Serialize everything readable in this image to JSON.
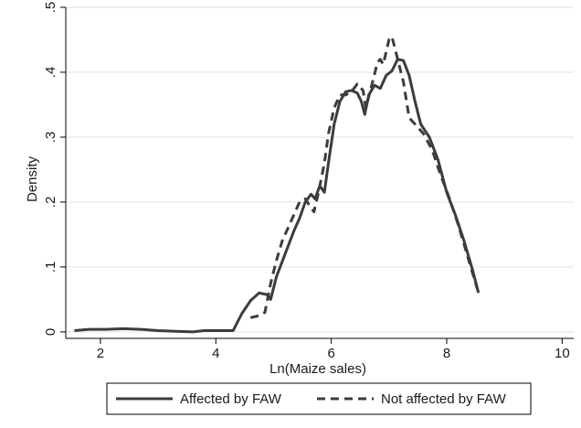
{
  "chart_data": {
    "type": "line",
    "xlabel": "Ln(Maize sales)",
    "ylabel": "Density",
    "xlim": [
      1.4,
      10.2
    ],
    "ylim": [
      -0.01,
      0.5
    ],
    "xticks": [
      {
        "value": 2,
        "label": "2"
      },
      {
        "value": 4,
        "label": "4"
      },
      {
        "value": 6,
        "label": "6"
      },
      {
        "value": 8,
        "label": "8"
      },
      {
        "value": 10,
        "label": "10"
      }
    ],
    "yticks": [
      {
        "value": 0,
        "label": "0"
      },
      {
        "value": 0.1,
        "label": ".1"
      },
      {
        "value": 0.2,
        "label": ".2"
      },
      {
        "value": 0.3,
        "label": ".3"
      },
      {
        "value": 0.4,
        "label": ".4"
      },
      {
        "value": 0.5,
        "label": ".5"
      }
    ],
    "grid": "horizontal",
    "legend_position": "bottom",
    "colors": {
      "line": "#3c3c3c",
      "grid": "#e2e2e2",
      "axis": "#000000",
      "background": "#ffffff"
    },
    "series": [
      {
        "name": "Affected by FAW",
        "style": "solid",
        "points": [
          [
            1.55,
            0.002
          ],
          [
            1.8,
            0.004
          ],
          [
            2.1,
            0.004
          ],
          [
            2.4,
            0.005
          ],
          [
            2.7,
            0.004
          ],
          [
            3.0,
            0.002
          ],
          [
            3.3,
            0.001
          ],
          [
            3.6,
            0.0
          ],
          [
            3.8,
            0.002
          ],
          [
            4.1,
            0.002
          ],
          [
            4.3,
            0.002
          ],
          [
            4.45,
            0.028
          ],
          [
            4.6,
            0.048
          ],
          [
            4.75,
            0.06
          ],
          [
            4.9,
            0.057
          ],
          [
            4.95,
            0.05
          ],
          [
            5.05,
            0.085
          ],
          [
            5.2,
            0.12
          ],
          [
            5.35,
            0.155
          ],
          [
            5.45,
            0.175
          ],
          [
            5.55,
            0.2
          ],
          [
            5.65,
            0.212
          ],
          [
            5.72,
            0.205
          ],
          [
            5.8,
            0.225
          ],
          [
            5.88,
            0.215
          ],
          [
            5.95,
            0.26
          ],
          [
            6.05,
            0.32
          ],
          [
            6.15,
            0.355
          ],
          [
            6.25,
            0.37
          ],
          [
            6.35,
            0.372
          ],
          [
            6.45,
            0.368
          ],
          [
            6.52,
            0.355
          ],
          [
            6.58,
            0.335
          ],
          [
            6.65,
            0.365
          ],
          [
            6.75,
            0.38
          ],
          [
            6.85,
            0.375
          ],
          [
            6.95,
            0.395
          ],
          [
            7.05,
            0.402
          ],
          [
            7.15,
            0.42
          ],
          [
            7.25,
            0.418
          ],
          [
            7.35,
            0.395
          ],
          [
            7.45,
            0.355
          ],
          [
            7.55,
            0.32
          ],
          [
            7.7,
            0.3
          ],
          [
            7.85,
            0.265
          ],
          [
            8.0,
            0.215
          ],
          [
            8.15,
            0.18
          ],
          [
            8.3,
            0.14
          ],
          [
            8.45,
            0.095
          ],
          [
            8.55,
            0.06
          ]
        ]
      },
      {
        "name": "Not affected by FAW",
        "style": "dashed",
        "points": [
          [
            4.6,
            0.022
          ],
          [
            4.75,
            0.025
          ],
          [
            4.85,
            0.03
          ],
          [
            4.95,
            0.075
          ],
          [
            5.05,
            0.11
          ],
          [
            5.15,
            0.14
          ],
          [
            5.25,
            0.16
          ],
          [
            5.35,
            0.18
          ],
          [
            5.45,
            0.2
          ],
          [
            5.55,
            0.205
          ],
          [
            5.62,
            0.195
          ],
          [
            5.7,
            0.185
          ],
          [
            5.78,
            0.215
          ],
          [
            5.88,
            0.26
          ],
          [
            5.95,
            0.305
          ],
          [
            6.05,
            0.345
          ],
          [
            6.15,
            0.365
          ],
          [
            6.25,
            0.365
          ],
          [
            6.35,
            0.37
          ],
          [
            6.45,
            0.382
          ],
          [
            6.55,
            0.372
          ],
          [
            6.6,
            0.345
          ],
          [
            6.7,
            0.38
          ],
          [
            6.8,
            0.415
          ],
          [
            6.85,
            0.42
          ],
          [
            6.9,
            0.412
          ],
          [
            7.0,
            0.45
          ],
          [
            7.05,
            0.455
          ],
          [
            7.15,
            0.42
          ],
          [
            7.25,
            0.385
          ],
          [
            7.35,
            0.33
          ],
          [
            7.45,
            0.32
          ],
          [
            7.6,
            0.305
          ],
          [
            7.75,
            0.28
          ],
          [
            7.9,
            0.24
          ],
          [
            8.05,
            0.205
          ],
          [
            8.2,
            0.165
          ],
          [
            8.35,
            0.12
          ],
          [
            8.5,
            0.075
          ],
          [
            8.55,
            0.06
          ]
        ]
      }
    ]
  }
}
